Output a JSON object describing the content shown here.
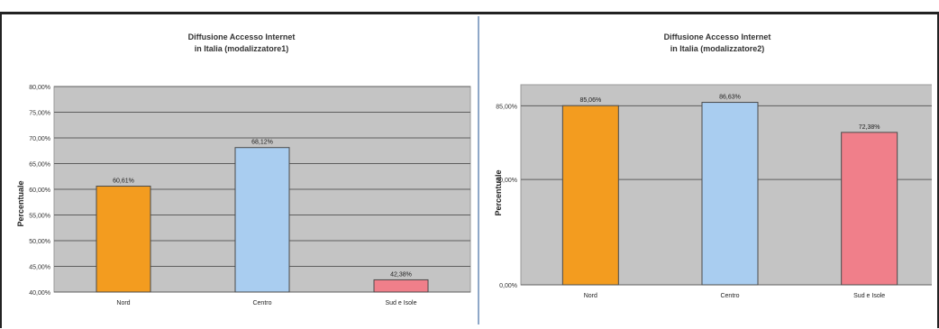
{
  "chart_data": [
    {
      "type": "bar",
      "title": "Diffusione Accesso Internet",
      "subtitle": "in Italia (modalizzatore1)",
      "xlabel": "",
      "ylabel": "Percentuale",
      "categories": [
        "Nord",
        "Centro",
        "Sud e Isole"
      ],
      "values": [
        60.61,
        68.12,
        42.38
      ],
      "data_labels": [
        "60,61%",
        "68,12%",
        "42,38%"
      ],
      "ylim": [
        40,
        80
      ],
      "ticks": [
        40,
        45,
        50,
        55,
        60,
        65,
        70,
        75,
        80
      ],
      "tick_labels": [
        "40,00%",
        "45,00%",
        "50,00%",
        "55,00%",
        "60,00%",
        "65,00%",
        "70,00%",
        "75,00%",
        "80,00%"
      ],
      "colors": [
        "#f39c1f",
        "#a9cdf0",
        "#f07f8a"
      ],
      "grid": true
    },
    {
      "type": "bar",
      "title": "Diffusione Accesso Internet",
      "subtitle": "in Italia (modalizzatore2)",
      "xlabel": "",
      "ylabel": "Percentuale",
      "categories": [
        "Nord",
        "Centro",
        "Sud e Isole"
      ],
      "values": [
        85.06,
        86.63,
        72.38
      ],
      "data_labels": [
        "85,06%",
        "86,63%",
        "72,38%"
      ],
      "ylim": [
        0,
        95
      ],
      "ticks": [
        0,
        50,
        85
      ],
      "tick_labels": [
        "0,00%",
        "50,00%",
        "85,00%"
      ],
      "colors": [
        "#f39c1f",
        "#a9cdf0",
        "#f07f8a"
      ],
      "grid": true
    }
  ]
}
